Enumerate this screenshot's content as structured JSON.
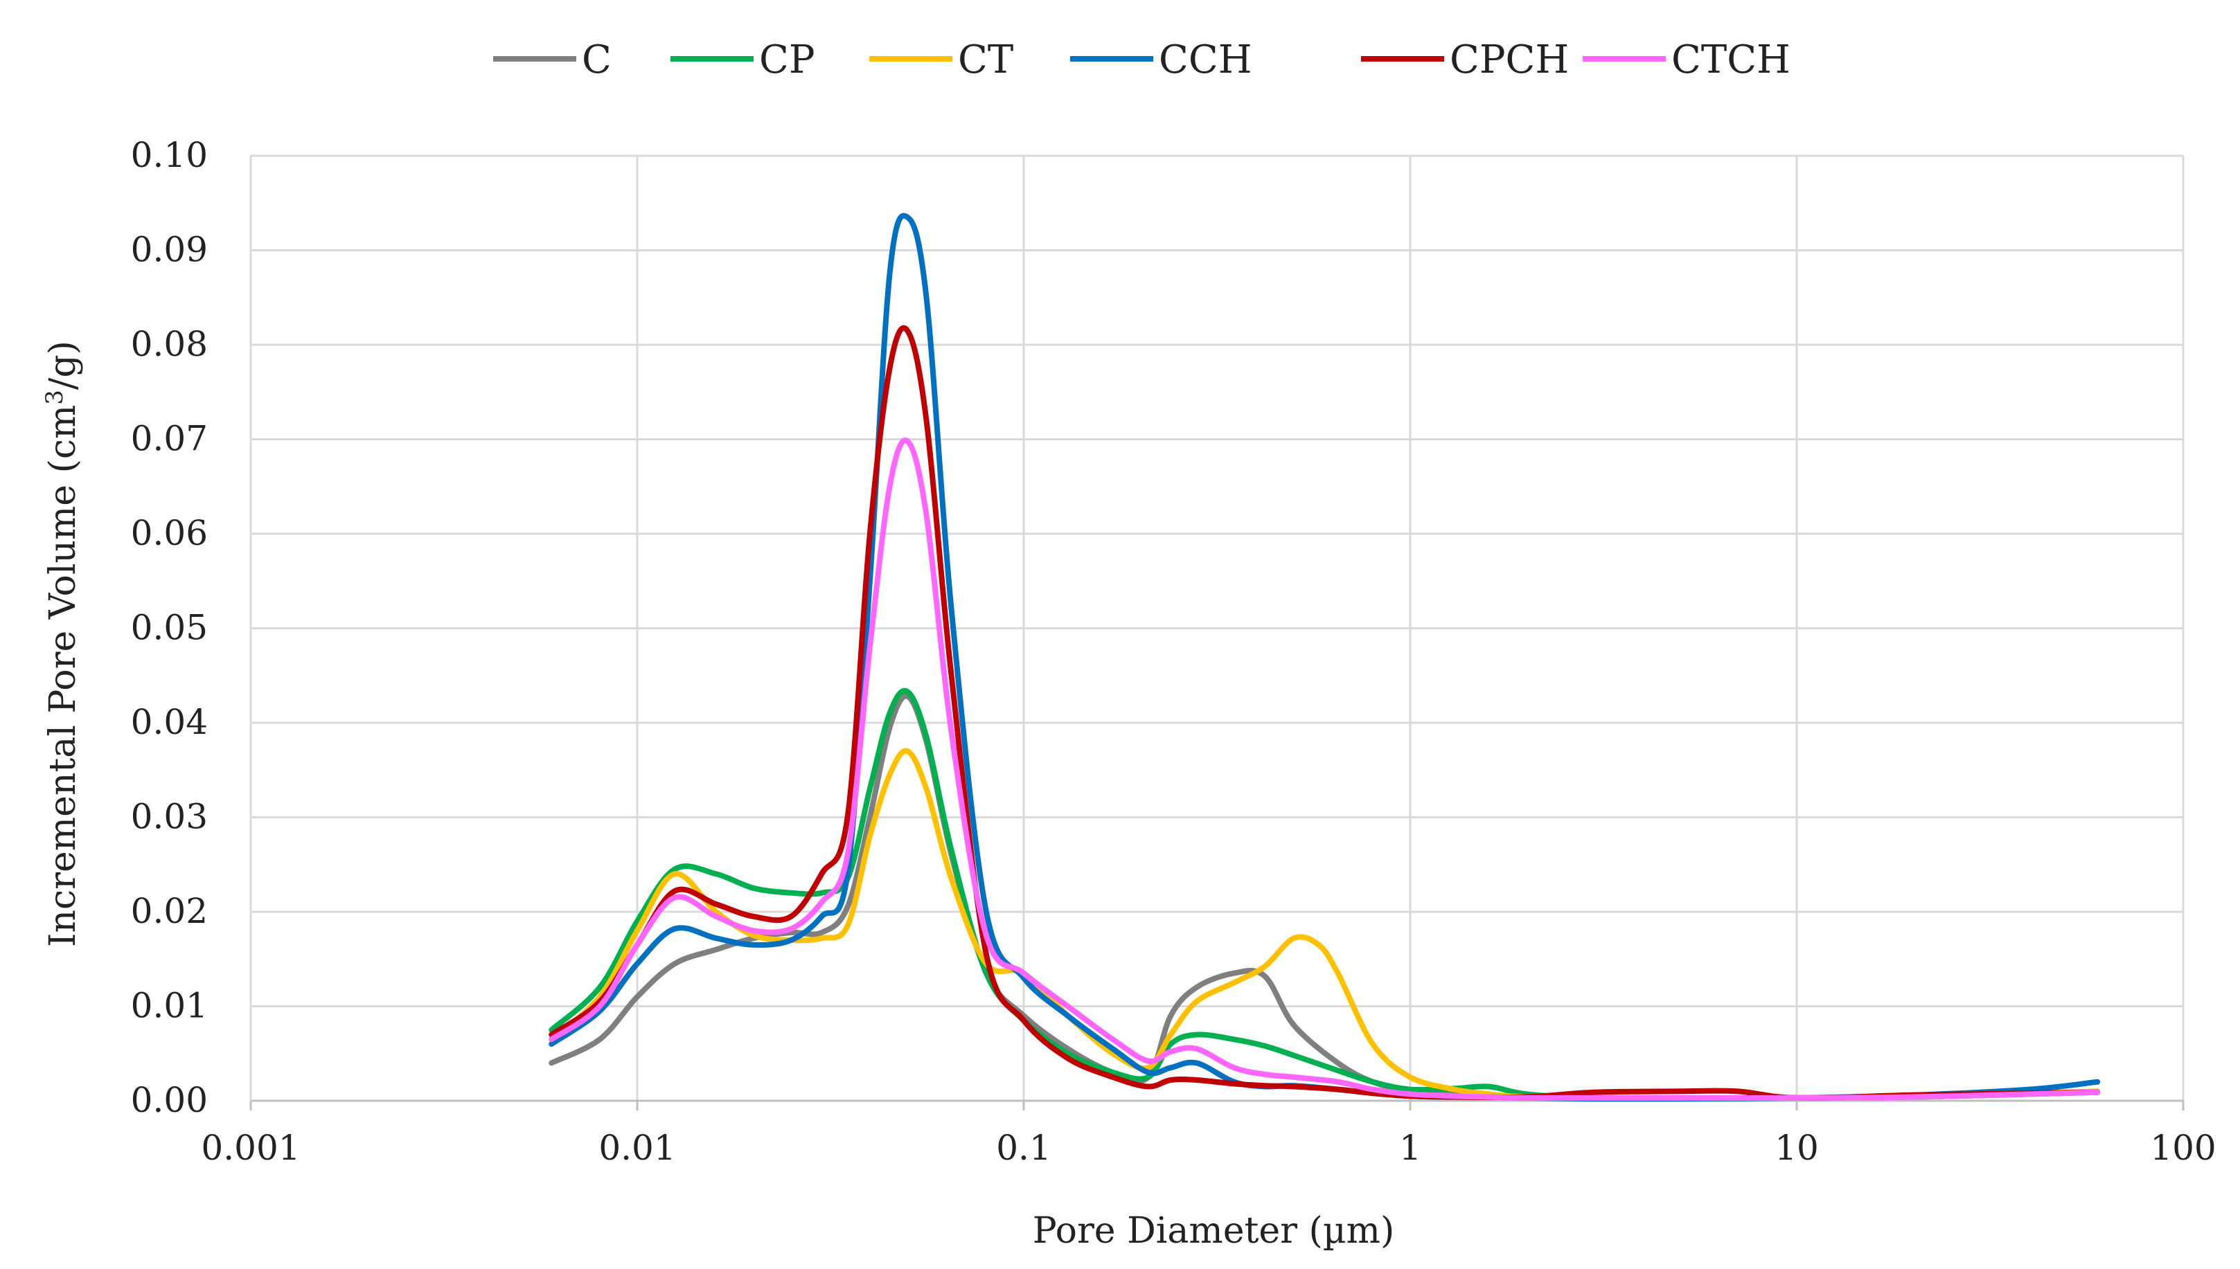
{
  "chart_data": {
    "type": "line",
    "title": "",
    "xlabel": "Pore Diameter (µm)",
    "ylabel": "Incremental Pore Volume (cm",
    "ylabel_sup": "3",
    "ylabel_suffix": "/g)",
    "x_scale": "log",
    "xlim": [
      0.001,
      100
    ],
    "ylim": [
      0,
      0.1
    ],
    "x_ticks": [
      0.001,
      0.01,
      0.1,
      1,
      10,
      100
    ],
    "x_tick_labels": [
      "0.001",
      "0.01",
      "0.1",
      "1",
      "10",
      "100"
    ],
    "y_ticks": [
      0,
      0.01,
      0.02,
      0.03,
      0.04,
      0.05,
      0.06,
      0.07,
      0.08,
      0.09,
      0.1
    ],
    "y_tick_labels": [
      "0.00",
      "0.01",
      "0.02",
      "0.03",
      "0.04",
      "0.05",
      "0.06",
      "0.07",
      "0.08",
      "0.09",
      "0.10"
    ],
    "grid": true,
    "legend_position": "top-center",
    "series": [
      {
        "name": "C",
        "color": "#7f7f7f",
        "x": [
          0.006,
          0.008,
          0.01,
          0.0125,
          0.016,
          0.02,
          0.025,
          0.03,
          0.035,
          0.04,
          0.045,
          0.05,
          0.056,
          0.065,
          0.08,
          0.1,
          0.13,
          0.17,
          0.21,
          0.24,
          0.28,
          0.35,
          0.42,
          0.5,
          0.65,
          0.8,
          1,
          1.3,
          1.6,
          2,
          3,
          5,
          10,
          20,
          40,
          60
        ],
        "y": [
          0.004,
          0.0065,
          0.011,
          0.0145,
          0.016,
          0.0172,
          0.0178,
          0.0178,
          0.0205,
          0.03,
          0.0395,
          0.0428,
          0.038,
          0.026,
          0.0135,
          0.009,
          0.0055,
          0.003,
          0.0025,
          0.009,
          0.012,
          0.0135,
          0.0132,
          0.008,
          0.004,
          0.002,
          0.001,
          0.0008,
          0.0006,
          0.0004,
          0.0003,
          0.0003,
          0.0003,
          0.0004,
          0.0007,
          0.0009
        ]
      },
      {
        "name": "CP",
        "color": "#00b050",
        "x": [
          0.006,
          0.008,
          0.01,
          0.0125,
          0.016,
          0.02,
          0.025,
          0.03,
          0.035,
          0.04,
          0.045,
          0.05,
          0.056,
          0.065,
          0.08,
          0.1,
          0.13,
          0.17,
          0.21,
          0.24,
          0.28,
          0.35,
          0.42,
          0.5,
          0.65,
          0.8,
          1,
          1.3,
          1.6,
          2,
          3,
          5,
          10,
          20,
          40,
          60
        ],
        "y": [
          0.0075,
          0.012,
          0.019,
          0.0245,
          0.024,
          0.0225,
          0.022,
          0.022,
          0.0235,
          0.033,
          0.041,
          0.0433,
          0.0385,
          0.0265,
          0.0135,
          0.0085,
          0.005,
          0.003,
          0.0025,
          0.006,
          0.007,
          0.0065,
          0.0058,
          0.0048,
          0.0032,
          0.002,
          0.0012,
          0.0013,
          0.0015,
          0.0007,
          0.0003,
          0.0003,
          0.0003,
          0.0004,
          0.0007,
          0.0009
        ]
      },
      {
        "name": "CT",
        "color": "#ffc000",
        "x": [
          0.006,
          0.008,
          0.01,
          0.0125,
          0.016,
          0.02,
          0.025,
          0.03,
          0.035,
          0.04,
          0.045,
          0.05,
          0.056,
          0.065,
          0.08,
          0.1,
          0.13,
          0.17,
          0.21,
          0.24,
          0.28,
          0.35,
          0.42,
          0.5,
          0.58,
          0.65,
          0.8,
          1,
          1.3,
          1.6,
          2,
          3,
          5,
          10,
          20,
          40,
          60
        ],
        "y": [
          0.0065,
          0.011,
          0.018,
          0.024,
          0.02,
          0.0175,
          0.017,
          0.0172,
          0.0185,
          0.028,
          0.0345,
          0.037,
          0.033,
          0.0235,
          0.0145,
          0.0135,
          0.009,
          0.005,
          0.0035,
          0.007,
          0.0105,
          0.0125,
          0.0142,
          0.0172,
          0.0165,
          0.0135,
          0.006,
          0.0025,
          0.0012,
          0.0007,
          0.0004,
          0.0003,
          0.0003,
          0.0003,
          0.0005,
          0.0008,
          0.001
        ]
      },
      {
        "name": "CCH",
        "color": "#0070c0",
        "x": [
          0.006,
          0.008,
          0.01,
          0.0125,
          0.016,
          0.02,
          0.025,
          0.03,
          0.035,
          0.04,
          0.045,
          0.05,
          0.056,
          0.065,
          0.08,
          0.1,
          0.13,
          0.17,
          0.21,
          0.24,
          0.28,
          0.35,
          0.42,
          0.5,
          0.65,
          0.8,
          1,
          1.3,
          1.6,
          2,
          3,
          5,
          10,
          20,
          40,
          60
        ],
        "y": [
          0.006,
          0.0095,
          0.0145,
          0.0182,
          0.0172,
          0.0165,
          0.017,
          0.0195,
          0.024,
          0.055,
          0.0875,
          0.0935,
          0.085,
          0.052,
          0.02,
          0.013,
          0.009,
          0.0055,
          0.003,
          0.0035,
          0.004,
          0.002,
          0.0015,
          0.0016,
          0.0012,
          0.0008,
          0.0005,
          0.0004,
          0.0004,
          0.0003,
          0.0002,
          0.0002,
          0.0003,
          0.0006,
          0.0012,
          0.002
        ]
      },
      {
        "name": "CPCH",
        "color": "#c00000",
        "x": [
          0.006,
          0.008,
          0.01,
          0.0125,
          0.016,
          0.02,
          0.025,
          0.03,
          0.035,
          0.04,
          0.045,
          0.05,
          0.056,
          0.065,
          0.08,
          0.1,
          0.13,
          0.17,
          0.21,
          0.24,
          0.28,
          0.35,
          0.42,
          0.5,
          0.65,
          0.8,
          1,
          1.3,
          2,
          3,
          5,
          7,
          10,
          20,
          40,
          60
        ],
        "y": [
          0.007,
          0.0105,
          0.0165,
          0.0222,
          0.0208,
          0.0195,
          0.0195,
          0.024,
          0.03,
          0.06,
          0.0775,
          0.0815,
          0.072,
          0.045,
          0.0155,
          0.0085,
          0.0045,
          0.0025,
          0.0015,
          0.0022,
          0.0022,
          0.0018,
          0.0016,
          0.0015,
          0.0012,
          0.0008,
          0.0005,
          0.0004,
          0.0004,
          0.0009,
          0.001,
          0.001,
          0.0003,
          0.0006,
          0.0008,
          0.0009
        ]
      },
      {
        "name": "CTCH",
        "color": "#ff66ff",
        "x": [
          0.006,
          0.008,
          0.01,
          0.0125,
          0.016,
          0.02,
          0.025,
          0.03,
          0.035,
          0.04,
          0.045,
          0.05,
          0.056,
          0.065,
          0.08,
          0.1,
          0.13,
          0.17,
          0.21,
          0.24,
          0.28,
          0.35,
          0.42,
          0.5,
          0.65,
          0.8,
          1,
          1.3,
          1.6,
          2,
          3,
          5,
          10,
          20,
          40,
          60
        ],
        "y": [
          0.0065,
          0.01,
          0.0165,
          0.0215,
          0.0195,
          0.018,
          0.0182,
          0.021,
          0.026,
          0.048,
          0.065,
          0.0698,
          0.062,
          0.039,
          0.0175,
          0.0135,
          0.01,
          0.0065,
          0.0042,
          0.0052,
          0.0055,
          0.0035,
          0.0028,
          0.0025,
          0.002,
          0.0012,
          0.0007,
          0.0005,
          0.0004,
          0.0003,
          0.0003,
          0.0003,
          0.0003,
          0.0004,
          0.0007,
          0.0009
        ]
      }
    ]
  }
}
